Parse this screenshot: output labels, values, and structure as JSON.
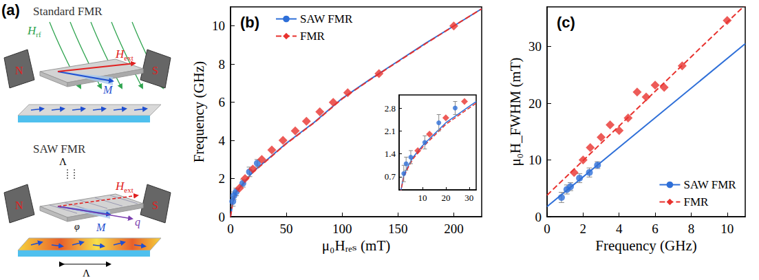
{
  "diagram": {
    "label": "(a)",
    "standard": {
      "title": "Standard FMR",
      "field": {
        "text": "H",
        "sub": "rf"
      },
      "external": {
        "text": "H",
        "sub": "ext"
      },
      "magnetization": "M",
      "poles": [
        "N",
        "S"
      ]
    },
    "saw": {
      "title": "SAW FMR",
      "wavelength": [
        "Λ",
        "Λ"
      ],
      "external": {
        "text": "H",
        "sub": "ext"
      },
      "wavevector": "q",
      "angle": "φ",
      "magnetization": "M",
      "poles": [
        "N",
        "S"
      ]
    }
  },
  "chart_data": [
    {
      "type": "scatter",
      "title": "(b)",
      "x_label": "μ₀Hᵣₑₛ (mT)",
      "y_label": "Frequency (GHz)",
      "xlim": [
        0,
        225
      ],
      "ylim": [
        0,
        11
      ],
      "xticks": [
        0,
        50,
        100,
        150,
        200
      ],
      "yticks": [
        0,
        2,
        4,
        6,
        8,
        10
      ],
      "grid": false,
      "legend": "upper left",
      "series": [
        {
          "name": "SAW FMR",
          "color": "#2e6fd8",
          "marker": "circle",
          "line_style": "solid",
          "x": [
            2,
            3,
            5,
            11,
            17,
            24
          ],
          "values": [
            0.8,
            1.1,
            1.3,
            1.75,
            2.35,
            2.8
          ],
          "errors": [
            0.25,
            0.2,
            0.2,
            0.2,
            0.25,
            0.2
          ],
          "fit": {
            "x": [
              0,
              2,
              5,
              10,
              20,
              30,
              50,
              75,
              100,
              125,
              150,
              175,
              200,
              225
            ],
            "values": [
              0,
              0.75,
              1.3,
              1.65,
              2.35,
              2.85,
              3.85,
              4.95,
              6.2,
              7.2,
              8.15,
              9.1,
              10.0,
              10.9
            ]
          }
        },
        {
          "name": "FMR",
          "color": "#e8322e",
          "marker": "diamond",
          "line_style": "dashed",
          "x": [
            8,
            13,
            20,
            28,
            37,
            47,
            58,
            68,
            80,
            92,
            105,
            133,
            200
          ],
          "values": [
            1.5,
            2.0,
            2.5,
            3.0,
            3.5,
            4.0,
            4.5,
            5.0,
            5.5,
            6.0,
            6.5,
            7.5,
            10.0
          ],
          "fit": {
            "x": [
              0,
              2,
              5,
              10,
              20,
              30,
              50,
              75,
              100,
              125,
              150,
              175,
              200,
              225
            ],
            "values": [
              0,
              0.72,
              1.27,
              1.62,
              2.32,
              2.82,
              3.83,
              4.93,
              6.18,
              7.18,
              8.13,
              9.08,
              10.0,
              10.9
            ]
          }
        }
      ]
    },
    {
      "type": "scatter",
      "xlim": [
        0,
        33
      ],
      "ylim": [
        0.3,
        3.2
      ],
      "xticks": [
        10,
        20,
        30
      ],
      "yticks": [
        0.7,
        1.4,
        2.1,
        2.8
      ],
      "grid": false,
      "series": [
        {
          "color": "#2e6fd8",
          "marker": "circle",
          "line_style": "solid",
          "x": [
            2,
            3,
            5,
            11,
            17,
            24
          ],
          "values": [
            0.8,
            1.1,
            1.3,
            1.75,
            2.35,
            2.8
          ],
          "errors": [
            0.25,
            0.2,
            0.2,
            0.2,
            0.25,
            0.2
          ],
          "fit": {
            "x": [
              0,
              2,
              4,
              6,
              10,
              15,
              20,
              25,
              30,
              33
            ],
            "values": [
              0,
              0.75,
              1.05,
              1.3,
              1.65,
              2.0,
              2.35,
              2.6,
              2.85,
              3.0
            ]
          }
        },
        {
          "color": "#e8322e",
          "marker": "diamond",
          "line_style": "dashed",
          "x": [
            8,
            13,
            20,
            28
          ],
          "values": [
            1.5,
            2.0,
            2.5,
            3.0
          ],
          "fit": {
            "x": [
              0,
              2,
              4,
              6,
              10,
              15,
              20,
              25,
              30,
              33
            ],
            "values": [
              0,
              0.7,
              1.0,
              1.25,
              1.6,
              1.95,
              2.3,
              2.55,
              2.8,
              2.95
            ]
          }
        }
      ]
    },
    {
      "type": "scatter",
      "title": "(c)",
      "x_label": "Frequency (GHz)",
      "y_label": "μ₀H_FWHM (mT)",
      "xlim": [
        0,
        11
      ],
      "ylim": [
        0,
        37
      ],
      "xticks": [
        0,
        2,
        4,
        6,
        8,
        10
      ],
      "yticks": [
        0,
        10,
        20,
        30
      ],
      "grid": false,
      "legend": "lower right",
      "series": [
        {
          "name": "SAW FMR",
          "color": "#2e6fd8",
          "marker": "circle",
          "line_style": "solid",
          "x": [
            0.8,
            1.1,
            1.3,
            1.8,
            2.35,
            2.8
          ],
          "values": [
            3.4,
            4.8,
            5.3,
            6.8,
            7.8,
            9.1
          ],
          "errors": [
            0.9,
            0.8,
            0.7,
            0.8,
            0.8,
            0.6
          ],
          "fit": {
            "x": [
              0,
              11
            ],
            "values": [
              1.8,
              30.5
            ]
          }
        },
        {
          "name": "FMR",
          "color": "#e8322e",
          "marker": "diamond",
          "line_style": "dashed",
          "x": [
            1.5,
            2.0,
            2.4,
            3.0,
            3.5,
            4.0,
            4.5,
            5.0,
            5.5,
            6.0,
            6.5,
            7.5,
            10.0
          ],
          "values": [
            7.8,
            10.0,
            12.2,
            14.0,
            16.2,
            15.2,
            17.4,
            22.0,
            21.1,
            23.2,
            22.8,
            26.6,
            34.6
          ],
          "fit": {
            "x": [
              0,
              11
            ],
            "values": [
              3.8,
              37.35
            ]
          }
        }
      ]
    }
  ]
}
